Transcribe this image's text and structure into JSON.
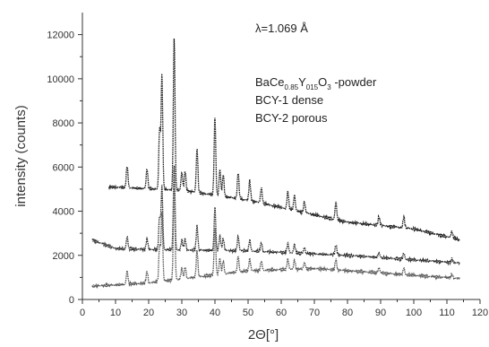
{
  "chart_data": {
    "type": "line",
    "title": "",
    "xlabel": "2Θ[°]",
    "ylabel": "intensity (counts)",
    "xlim": [
      0,
      120
    ],
    "ylim": [
      0,
      13000
    ],
    "x_ticks": [
      0,
      10,
      20,
      30,
      40,
      50,
      60,
      70,
      80,
      90,
      100,
      110,
      120
    ],
    "y_ticks": [
      0,
      2000,
      4000,
      6000,
      8000,
      10000,
      12000
    ],
    "grid": false,
    "legend": "none",
    "annotations": {
      "wavelength": "λ=1.069 Å",
      "series_labels": [
        {
          "base": "BaCe",
          "sub1": "0.85",
          "mid": "Y",
          "sub2": "015",
          "tail": "O",
          "sub3": "3",
          "end": " -powder"
        },
        {
          "text": "BCY-1 dense"
        },
        {
          "text": "BCY-2 porous"
        }
      ]
    },
    "peaks": [
      {
        "x": 13.5,
        "height": 1000
      },
      {
        "x": 19.5,
        "height": 900
      },
      {
        "x": 23.3,
        "height": 2700
      },
      {
        "x": 24.0,
        "height": 5200
      },
      {
        "x": 27.7,
        "height": 6900
      },
      {
        "x": 30.0,
        "height": 800
      },
      {
        "x": 31.0,
        "height": 900
      },
      {
        "x": 34.6,
        "height": 2000
      },
      {
        "x": 40.0,
        "height": 3600
      },
      {
        "x": 41.5,
        "height": 1200
      },
      {
        "x": 42.5,
        "height": 1000
      },
      {
        "x": 47.0,
        "height": 1200
      },
      {
        "x": 50.5,
        "height": 900
      },
      {
        "x": 54.0,
        "height": 700
      },
      {
        "x": 62.0,
        "height": 800
      },
      {
        "x": 64.0,
        "height": 700
      },
      {
        "x": 67.0,
        "height": 500
      },
      {
        "x": 76.5,
        "height": 800
      },
      {
        "x": 89.5,
        "height": 400
      },
      {
        "x": 97.0,
        "height": 500
      },
      {
        "x": 111.5,
        "height": 300
      }
    ],
    "series": [
      {
        "baseline": [
          [
            8,
            5100
          ],
          [
            30,
            4950
          ],
          [
            50,
            4500
          ],
          [
            80,
            3500
          ],
          [
            100,
            3200
          ],
          [
            114,
            2700
          ]
        ],
        "color": "#1a1a1a",
        "start": 8,
        "end": 114
      },
      {
        "baseline": [
          [
            3,
            2700
          ],
          [
            10,
            2300
          ],
          [
            50,
            2200
          ],
          [
            80,
            2000
          ],
          [
            114,
            1650
          ]
        ],
        "color": "#2b2b2b",
        "start": 3,
        "end": 114
      },
      {
        "baseline": [
          [
            3,
            600
          ],
          [
            20,
            750
          ],
          [
            50,
            1300
          ],
          [
            70,
            1400
          ],
          [
            90,
            1200
          ],
          [
            114,
            950
          ]
        ],
        "color": "#555555",
        "start": 3,
        "end": 114
      }
    ]
  }
}
